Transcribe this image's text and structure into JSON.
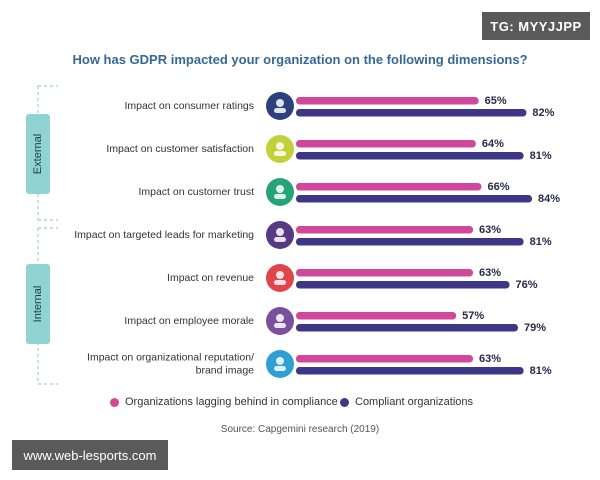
{
  "badge": "TG: MYYJJPP",
  "watermark": "www.web-lesports.com",
  "chart_data": {
    "type": "bar",
    "orientation": "horizontal",
    "title": "How has GDPR impacted your organization on the following dimensions?",
    "groups": [
      {
        "label": "External",
        "rows": [
          0,
          1,
          2
        ]
      },
      {
        "label": "Internal",
        "rows": [
          3,
          4,
          5,
          6
        ]
      }
    ],
    "categories": [
      "Impact on consumer ratings",
      "Impact on customer satisfaction",
      "Impact on customer trust",
      "Impact on targeted leads for marketing",
      "Impact on revenue",
      "Impact on employee morale",
      "Impact on organizational reputation/ brand image"
    ],
    "category_lines": [
      [
        "Impact on consumer ratings"
      ],
      [
        "Impact on customer satisfaction"
      ],
      [
        "Impact on customer trust"
      ],
      [
        "Impact on targeted leads for marketing"
      ],
      [
        "Impact on revenue"
      ],
      [
        "Impact on employee morale"
      ],
      [
        "Impact on organizational reputation/",
        "brand image"
      ]
    ],
    "icons": [
      "consumer-ratings-icon",
      "customer-satisfaction-icon",
      "customer-trust-icon",
      "targeted-leads-icon",
      "revenue-icon",
      "employee-morale-icon",
      "reputation-icon"
    ],
    "icon_colors": [
      "#2d3f7c",
      "#c2d13a",
      "#27a37a",
      "#563a82",
      "#e0454b",
      "#7a4fa0",
      "#2f9fd4"
    ],
    "series": [
      {
        "name": "Organizations lagging behind in compliance",
        "color": "#d1489b",
        "values": [
          65,
          64,
          66,
          63,
          63,
          57,
          63
        ]
      },
      {
        "name": "Compliant organizations",
        "color": "#3e3787",
        "values": [
          82,
          81,
          84,
          81,
          76,
          79,
          81
        ]
      }
    ],
    "value_suffix": "%",
    "xlim": [
      0,
      100
    ],
    "legend_position": "bottom",
    "source": "Source: Capgemini research (2019)"
  }
}
